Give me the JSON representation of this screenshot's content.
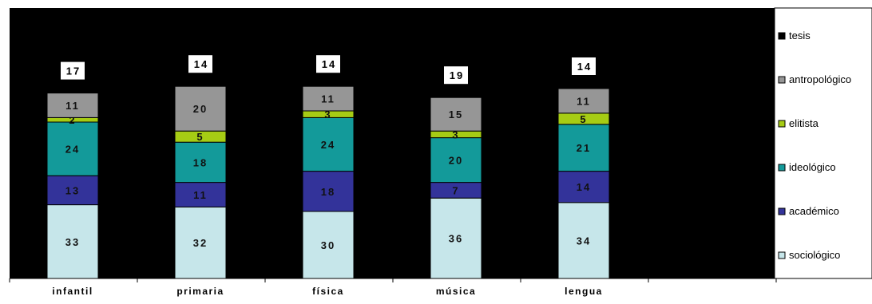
{
  "chart_data": {
    "type": "bar",
    "stacked": true,
    "categories": [
      "infantil",
      "primaria",
      "física",
      "música",
      "lengua"
    ],
    "series": [
      {
        "name": "sociológico",
        "color": "#c6e6ea",
        "values": [
          33,
          32,
          30,
          36,
          34
        ]
      },
      {
        "name": "académico",
        "color": "#33339a",
        "values": [
          13,
          11,
          18,
          7,
          14
        ]
      },
      {
        "name": "ideológico",
        "color": "#139a9a",
        "values": [
          24,
          18,
          24,
          20,
          21
        ]
      },
      {
        "name": "elitista",
        "color": "#a6cc14",
        "values": [
          2,
          5,
          3,
          3,
          5
        ]
      },
      {
        "name": "antropológico",
        "color": "#969696",
        "values": [
          11,
          20,
          11,
          15,
          11
        ]
      },
      {
        "name": "tesis",
        "color": "#000000",
        "values": [
          17,
          14,
          14,
          19,
          14
        ]
      }
    ],
    "legend": {
      "placement": "right",
      "order": [
        "tesis",
        "antropológico",
        "elitista",
        "ideológico",
        "académico",
        "sociológico"
      ]
    },
    "plot_background": "#000000",
    "grid": false,
    "xlabel": "",
    "ylabel": "",
    "title": ""
  }
}
